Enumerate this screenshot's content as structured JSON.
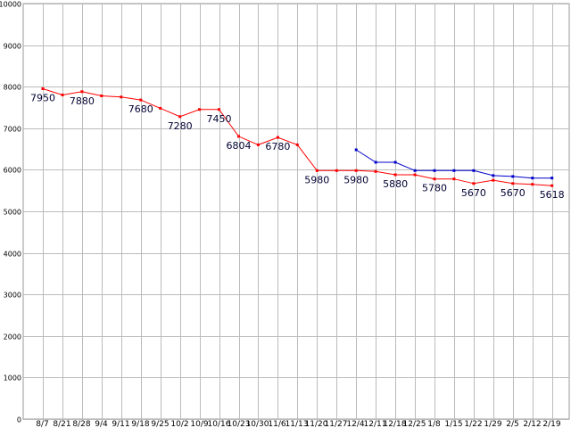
{
  "chart_data": {
    "type": "line",
    "title": "",
    "xlabel": "",
    "ylabel": "",
    "ylim": [
      0,
      10000
    ],
    "yticks": [
      0,
      1000,
      2000,
      3000,
      4000,
      5000,
      6000,
      7000,
      8000,
      9000,
      10000
    ],
    "grid": true,
    "categories": [
      "8/7",
      "8/21",
      "8/28",
      "9/4",
      "9/11",
      "9/18",
      "9/25",
      "10/2",
      "10/9",
      "10/16",
      "10/23",
      "10/30",
      "11/6",
      "11/13",
      "11/20",
      "11/27",
      "12/4",
      "12/11",
      "12/18",
      "12/25",
      "1/8",
      "1/15",
      "1/22",
      "1/29",
      "2/5",
      "2/12",
      "2/19"
    ],
    "series": [
      {
        "color": "#ff0000",
        "values": [
          7950,
          7800,
          7880,
          7780,
          7750,
          7680,
          7480,
          7280,
          7450,
          7450,
          6804,
          6600,
          6780,
          6600,
          5980,
          5980,
          5980,
          5960,
          5880,
          5880,
          5780,
          5780,
          5670,
          5750,
          5670,
          5650,
          5618
        ]
      },
      {
        "color": "#0000cc",
        "values": [
          null,
          null,
          null,
          null,
          null,
          null,
          null,
          null,
          null,
          null,
          null,
          null,
          null,
          null,
          null,
          null,
          6480,
          6180,
          6180,
          5980,
          5980,
          5980,
          5980,
          5860,
          5840,
          5800,
          5800
        ]
      }
    ],
    "data_labels": [
      {
        "series": 0,
        "index": 0,
        "text": "7950"
      },
      {
        "series": 0,
        "index": 2,
        "text": "7880"
      },
      {
        "series": 0,
        "index": 5,
        "text": "7680"
      },
      {
        "series": 0,
        "index": 7,
        "text": "7280"
      },
      {
        "series": 0,
        "index": 9,
        "text": "7450"
      },
      {
        "series": 0,
        "index": 10,
        "text": "6804"
      },
      {
        "series": 0,
        "index": 12,
        "text": "6780"
      },
      {
        "series": 0,
        "index": 14,
        "text": "5980"
      },
      {
        "series": 0,
        "index": 16,
        "text": "5980"
      },
      {
        "series": 0,
        "index": 18,
        "text": "5880"
      },
      {
        "series": 0,
        "index": 20,
        "text": "5780"
      },
      {
        "series": 0,
        "index": 22,
        "text": "5670"
      },
      {
        "series": 0,
        "index": 24,
        "text": "5670"
      },
      {
        "series": 0,
        "index": 26,
        "text": "5618"
      }
    ]
  }
}
